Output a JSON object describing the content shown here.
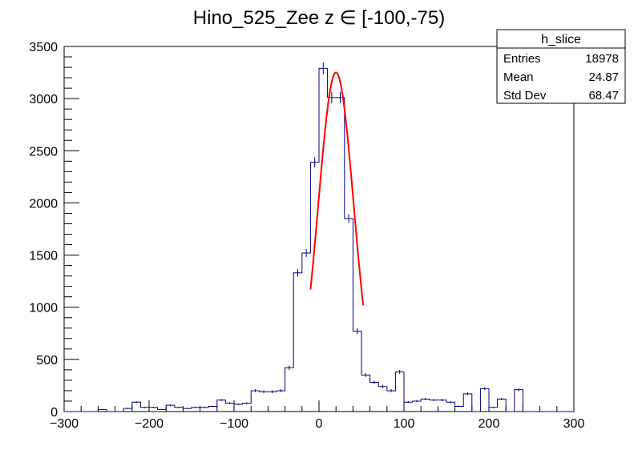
{
  "chart_data": {
    "type": "bar",
    "title": "Hino_525_Zee z  ∈ [-100,-75)",
    "xlabel": "",
    "ylabel": "",
    "xlim": [
      -300,
      300
    ],
    "ylim": [
      0,
      3500
    ],
    "bin_width": 10,
    "x_ticks": [
      -300,
      -200,
      -100,
      0,
      100,
      200,
      300
    ],
    "y_ticks": [
      0,
      500,
      1000,
      1500,
      2000,
      2500,
      3000,
      3500
    ],
    "x_tick_labels": [
      "−300",
      "−200",
      "−100",
      "0",
      "100",
      "200",
      "300"
    ],
    "y_tick_labels": [
      "0",
      "500",
      "1000",
      "1500",
      "2000",
      "2500",
      "3000",
      "3500"
    ],
    "grid": false,
    "histogram_color": "#000080",
    "fit_color": "#ff0000",
    "series": [
      {
        "x": [
          -295,
          -285,
          -275,
          -265,
          -255,
          -245,
          -235,
          -225,
          -215,
          -205,
          -195,
          -185,
          -175,
          -165,
          -155,
          -145,
          -135,
          -125,
          -115,
          -105,
          -95,
          -85,
          -75,
          -65,
          -55,
          -45,
          -35,
          -25,
          -15,
          -5,
          5,
          15,
          25,
          35,
          45,
          55,
          65,
          75,
          85,
          95,
          105,
          115,
          125,
          135,
          145,
          155,
          165,
          175,
          185,
          195,
          205,
          215,
          225,
          235,
          245,
          255,
          265,
          275,
          285,
          295
        ],
        "values": [
          0,
          0,
          0,
          0,
          20,
          0,
          0,
          30,
          90,
          40,
          40,
          20,
          60,
          40,
          30,
          40,
          40,
          50,
          110,
          80,
          70,
          80,
          200,
          190,
          190,
          200,
          420,
          1330,
          1520,
          2390,
          3290,
          3010,
          3010,
          1850,
          770,
          350,
          280,
          240,
          200,
          380,
          90,
          100,
          120,
          110,
          110,
          90,
          50,
          170,
          0,
          220,
          40,
          120,
          0,
          210,
          0,
          0,
          0,
          0,
          0,
          0
        ]
      }
    ],
    "fit": {
      "type": "gaussian",
      "amplitude": 3250,
      "mean": 20,
      "sigma": 21,
      "x_range": [
        -10,
        52
      ]
    },
    "stats_box": {
      "title": "h_slice",
      "rows": [
        {
          "label": "Entries",
          "value": "18978"
        },
        {
          "label": "Mean",
          "value": "24.87"
        },
        {
          "label": "Std Dev",
          "value": "68.47"
        }
      ]
    }
  }
}
